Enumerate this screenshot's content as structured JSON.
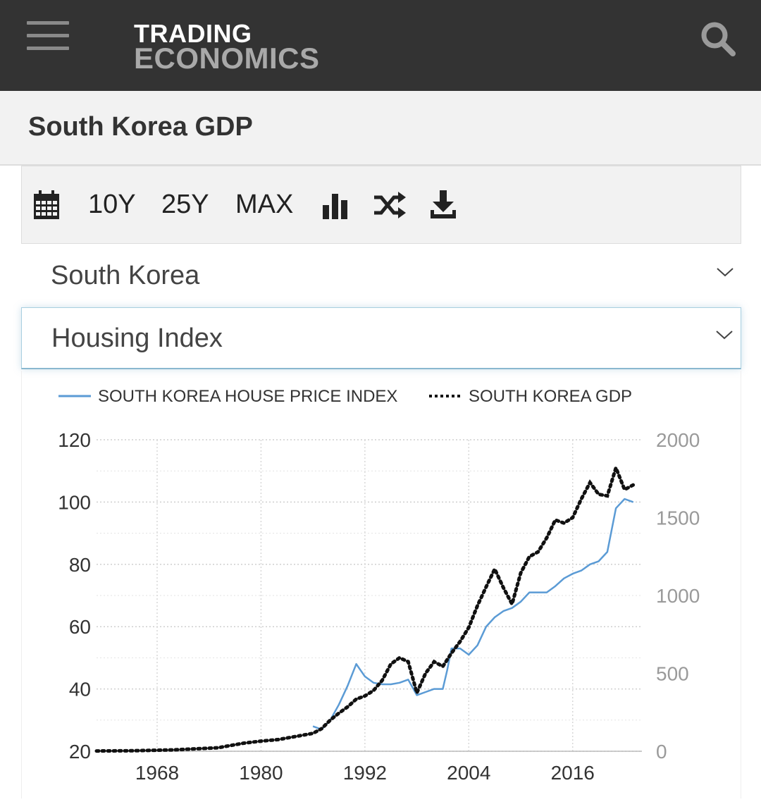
{
  "header": {
    "logo_line1": "TRADING",
    "logo_line2": "ECONOMICS",
    "menu_icon": "hamburger-menu-icon",
    "search_icon": "search-icon"
  },
  "page": {
    "title": "South Korea GDP"
  },
  "toolbar": {
    "calendar_icon": "calendar-icon",
    "range_10y": "10Y",
    "range_25y": "25Y",
    "range_max": "MAX",
    "chart_type_icon": "bar-chart-icon",
    "compare_icon": "shuffle-icon",
    "download_icon": "download-icon"
  },
  "selectors": {
    "country": "South Korea",
    "indicator": "Housing Index",
    "chevron_icon": "chevron-down-icon"
  },
  "colors": {
    "house_price": "#5b9bd5",
    "gdp": "#111111",
    "header_bg": "#333333"
  },
  "chart_data": {
    "type": "line",
    "legend_position": "top",
    "grid": true,
    "x_ticks": [
      "1968",
      "1980",
      "1992",
      "2004",
      "2016"
    ],
    "xlim": [
      1961,
      2024
    ],
    "y_left": {
      "ticks": [
        "20",
        "40",
        "60",
        "80",
        "100",
        "120"
      ],
      "lim": [
        20,
        120
      ]
    },
    "y_right": {
      "ticks": [
        "0",
        "500",
        "1000",
        "1500",
        "2000"
      ],
      "lim": [
        0,
        2000
      ]
    },
    "series": [
      {
        "name": "SOUTH KOREA HOUSE PRICE INDEX",
        "axis": "left",
        "style": "solid",
        "x": [
          1986,
          1987,
          1988,
          1989,
          1990,
          1991,
          1991.5,
          1992,
          1993,
          1994,
          1995,
          1996,
          1997,
          1998,
          1999,
          2000,
          2001,
          2001.5,
          2002,
          2003,
          2004,
          2005,
          2006,
          2007,
          2008,
          2009,
          2010,
          2011,
          2012,
          2013,
          2014,
          2015,
          2016,
          2017,
          2018,
          2019,
          2020,
          2021,
          2022,
          2023
        ],
        "values": [
          28,
          27,
          30,
          35,
          41,
          48,
          46,
          44,
          42,
          41.5,
          41.5,
          42,
          43,
          38,
          39,
          40,
          40,
          46,
          53,
          53,
          51,
          54,
          60,
          63,
          65,
          66,
          68,
          71,
          71,
          71,
          73,
          75.5,
          77,
          78,
          80,
          81,
          84,
          98,
          101,
          100
        ]
      },
      {
        "name": "SOUTH KOREA GDP",
        "axis": "right",
        "style": "dotted",
        "x": [
          1961,
          1965,
          1970,
          1975,
          1978,
          1980,
          1982,
          1984,
          1986,
          1987,
          1988,
          1989,
          1990,
          1991,
          1992,
          1993,
          1994,
          1995,
          1996,
          1997,
          1998,
          1999,
          2000,
          2001,
          2002,
          2003,
          2004,
          2005,
          2006,
          2007,
          2008,
          2009,
          2010,
          2011,
          2012,
          2013,
          2014,
          2015,
          2016,
          2017,
          2018,
          2019,
          2020,
          2021,
          2022,
          2023
        ],
        "values": [
          2,
          3,
          9,
          22,
          52,
          65,
          75,
          95,
          115,
          145,
          200,
          245,
          285,
          335,
          355,
          390,
          455,
          560,
          600,
          575,
          375,
          500,
          575,
          545,
          630,
          705,
          795,
          935,
          1055,
          1170,
          1050,
          945,
          1145,
          1250,
          1280,
          1370,
          1485,
          1465,
          1500,
          1620,
          1725,
          1650,
          1640,
          1820,
          1680,
          1710
        ]
      }
    ]
  }
}
